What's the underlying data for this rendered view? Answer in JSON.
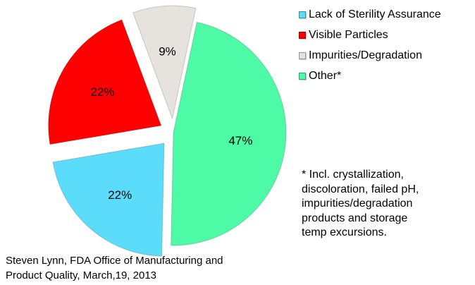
{
  "chart_data": {
    "type": "pie",
    "slices": [
      {
        "label": "Other*",
        "value": 47,
        "display": "47%",
        "color": "#4dfaa6",
        "exploded": false
      },
      {
        "label": "Lack of Sterility Assurance",
        "value": 22,
        "display": "22%",
        "color": "#5adcfa",
        "exploded": true
      },
      {
        "label": "Visible Particles",
        "value": 22,
        "display": "22%",
        "color": "#ff0000",
        "exploded": true
      },
      {
        "label": "Impurities/Degradation",
        "value": 9,
        "display": "9%",
        "color": "#e6e3df",
        "exploded": true
      }
    ],
    "legend": {
      "placement": "top-right",
      "items": [
        {
          "label": "Lack of Sterility Assurance",
          "color": "#5adcfa"
        },
        {
          "label": "Visible Particles",
          "color": "#ff0000"
        },
        {
          "label": "Impurities/Degradation",
          "color": "#e6e3df"
        },
        {
          "label": "Other*",
          "color": "#4dfaa6"
        }
      ]
    },
    "footnote": "* Incl. crystallization,\ndiscoloration, failed pH,\nimpurities/degradation\nproducts and storage\ntemp excursions.",
    "source": "Steven Lynn, FDA Office of Manufacturing and\nProduct Quality, March,19, 2013"
  }
}
